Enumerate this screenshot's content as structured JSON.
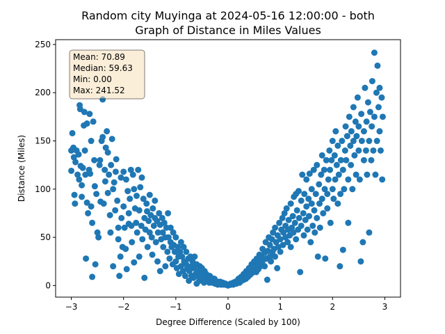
{
  "chart_data": {
    "type": "scatter",
    "title_line1": "Random city Muyinga at 2024-05-16 12:00:00  - both",
    "title_line2": "Graph of Distance in Miles Values",
    "xlabel": "Degree Difference (Scaled by 100)",
    "ylabel": "Distance (Miles)",
    "xlim": [
      -3.3,
      3.3
    ],
    "ylim": [
      -12,
      255
    ],
    "xticks": [
      -3,
      -2,
      -1,
      0,
      1,
      2,
      3
    ],
    "yticks": [
      0,
      50,
      100,
      150,
      200,
      250
    ],
    "point_color": "#1f77b4",
    "stats": {
      "mean": "Mean: 70.89",
      "median": "Median: 59.63",
      "min": "Min: 0.00",
      "max": "Max: 241.52"
    },
    "points": [
      [
        -3.0,
        119
      ],
      [
        -3.0,
        140
      ],
      [
        -2.98,
        158
      ],
      [
        -2.96,
        143
      ],
      [
        -2.95,
        133
      ],
      [
        -2.94,
        94
      ],
      [
        -2.93,
        85
      ],
      [
        -2.92,
        128
      ],
      [
        -2.9,
        140
      ],
      [
        -2.88,
        115
      ],
      [
        -2.86,
        136
      ],
      [
        -2.85,
        110
      ],
      [
        -2.84,
        187
      ],
      [
        -2.83,
        183
      ],
      [
        -2.82,
        124
      ],
      [
        -2.8,
        104
      ],
      [
        -2.8,
        92
      ],
      [
        -2.78,
        122
      ],
      [
        -2.76,
        166
      ],
      [
        -2.75,
        180
      ],
      [
        -2.74,
        140
      ],
      [
        -2.73,
        115
      ],
      [
        -2.72,
        28
      ],
      [
        -2.7,
        86
      ],
      [
        -2.7,
        168
      ],
      [
        -2.68,
        75
      ],
      [
        -2.66,
        120
      ],
      [
        -2.65,
        178
      ],
      [
        -2.64,
        116
      ],
      [
        -2.62,
        150
      ],
      [
        -2.62,
        82
      ],
      [
        -2.6,
        9
      ],
      [
        -2.6,
        65
      ],
      [
        -2.58,
        170
      ],
      [
        -2.56,
        130
      ],
      [
        -2.55,
        103
      ],
      [
        -2.54,
        22
      ],
      [
        -2.52,
        95
      ],
      [
        -2.5,
        55
      ],
      [
        -2.48,
        50
      ],
      [
        -2.46,
        125
      ],
      [
        -2.45,
        130
      ],
      [
        -2.44,
        87
      ],
      [
        -2.42,
        150
      ],
      [
        -2.4,
        154
      ],
      [
        -2.4,
        193
      ],
      [
        -2.38,
        85
      ],
      [
        -2.36,
        120
      ],
      [
        -2.35,
        108
      ],
      [
        -2.34,
        143
      ],
      [
        -2.32,
        160
      ],
      [
        -2.3,
        138
      ],
      [
        -2.3,
        96
      ],
      [
        -2.28,
        115
      ],
      [
        -2.26,
        73
      ],
      [
        -2.25,
        55
      ],
      [
        -2.24,
        125
      ],
      [
        -2.22,
        152
      ],
      [
        -2.2,
        100
      ],
      [
        -2.2,
        20
      ],
      [
        -2.18,
        107
      ],
      [
        -2.16,
        78
      ],
      [
        -2.15,
        118
      ],
      [
        -2.14,
        131
      ],
      [
        -2.12,
        88
      ],
      [
        -2.1,
        60
      ],
      [
        -2.1,
        48
      ],
      [
        -2.08,
        10
      ],
      [
        -2.06,
        30
      ],
      [
        -2.05,
        112
      ],
      [
        -2.04,
        70
      ],
      [
        -2.02,
        40
      ],
      [
        -2.0,
        82
      ],
      [
        -2.0,
        118
      ],
      [
        -1.98,
        60
      ],
      [
        -1.96,
        38
      ],
      [
        -1.95,
        110
      ],
      [
        -1.94,
        17
      ],
      [
        -1.92,
        98
      ],
      [
        -1.9,
        75
      ],
      [
        -1.9,
        64
      ],
      [
        -1.88,
        90
      ],
      [
        -1.86,
        120
      ],
      [
        -1.85,
        62
      ],
      [
        -1.84,
        45
      ],
      [
        -1.82,
        115
      ],
      [
        -1.8,
        100
      ],
      [
        -1.8,
        24
      ],
      [
        -1.78,
        80
      ],
      [
        -1.76,
        65
      ],
      [
        -1.75,
        93
      ],
      [
        -1.74,
        55
      ],
      [
        -1.72,
        120
      ],
      [
        -1.7,
        78
      ],
      [
        -1.7,
        30
      ],
      [
        -1.68,
        102
      ],
      [
        -1.66,
        62
      ],
      [
        -1.65,
        112
      ],
      [
        -1.64,
        48
      ],
      [
        -1.62,
        90
      ],
      [
        -1.6,
        70
      ],
      [
        -1.6,
        8
      ],
      [
        -1.58,
        58
      ],
      [
        -1.56,
        85
      ],
      [
        -1.55,
        77
      ],
      [
        -1.54,
        40
      ],
      [
        -1.52,
        67
      ],
      [
        -1.5,
        94
      ],
      [
        -1.5,
        55
      ],
      [
        -1.48,
        73
      ],
      [
        -1.46,
        50
      ],
      [
        -1.45,
        32
      ],
      [
        -1.44,
        80
      ],
      [
        -1.42,
        62
      ],
      [
        -1.4,
        88
      ],
      [
        -1.4,
        70
      ],
      [
        -1.38,
        45
      ],
      [
        -1.36,
        67
      ],
      [
        -1.35,
        25
      ],
      [
        -1.34,
        55
      ],
      [
        -1.32,
        75
      ],
      [
        -1.3,
        63
      ],
      [
        -1.3,
        15
      ],
      [
        -1.28,
        48
      ],
      [
        -1.26,
        70
      ],
      [
        -1.25,
        55
      ],
      [
        -1.24,
        40
      ],
      [
        -1.22,
        65
      ],
      [
        -1.2,
        20
      ],
      [
        -1.2,
        50
      ],
      [
        -1.18,
        60
      ],
      [
        -1.16,
        35
      ],
      [
        -1.15,
        75
      ],
      [
        -1.14,
        50
      ],
      [
        -1.12,
        28
      ],
      [
        -1.1,
        45
      ],
      [
        -1.1,
        60
      ],
      [
        -1.08,
        40
      ],
      [
        -1.06,
        22
      ],
      [
        -1.05,
        55
      ],
      [
        -1.04,
        42
      ],
      [
        -1.02,
        35
      ],
      [
        -1.0,
        50
      ],
      [
        -1.0,
        25
      ],
      [
        -0.98,
        18
      ],
      [
        -0.96,
        40
      ],
      [
        -0.95,
        30
      ],
      [
        -0.94,
        12
      ],
      [
        -0.92,
        35
      ],
      [
        -0.9,
        45
      ],
      [
        -0.9,
        20
      ],
      [
        -0.88,
        30
      ],
      [
        -0.86,
        15
      ],
      [
        -0.85,
        40
      ],
      [
        -0.84,
        25
      ],
      [
        -0.82,
        10
      ],
      [
        -0.8,
        22
      ],
      [
        -0.8,
        35
      ],
      [
        -0.78,
        18
      ],
      [
        -0.76,
        28
      ],
      [
        -0.75,
        5
      ],
      [
        -0.74,
        15
      ],
      [
        -0.72,
        30
      ],
      [
        -0.7,
        20
      ],
      [
        -0.7,
        10
      ],
      [
        -0.68,
        25
      ],
      [
        -0.66,
        8
      ],
      [
        -0.65,
        18
      ],
      [
        -0.64,
        30
      ],
      [
        -0.62,
        12
      ],
      [
        -0.6,
        2
      ],
      [
        -0.6,
        22
      ],
      [
        -0.58,
        10
      ],
      [
        -0.56,
        15
      ],
      [
        -0.55,
        5
      ],
      [
        -0.54,
        20
      ],
      [
        -0.52,
        12
      ],
      [
        -0.5,
        8
      ],
      [
        -0.5,
        18
      ],
      [
        -0.48,
        10
      ],
      [
        -0.46,
        3
      ],
      [
        -0.45,
        15
      ],
      [
        -0.44,
        8
      ],
      [
        -0.42,
        12
      ],
      [
        -0.4,
        5
      ],
      [
        -0.4,
        10
      ],
      [
        -0.38,
        7
      ],
      [
        -0.36,
        3
      ],
      [
        -0.35,
        10
      ],
      [
        -0.34,
        5
      ],
      [
        -0.32,
        8
      ],
      [
        -0.3,
        3
      ],
      [
        -0.3,
        6
      ],
      [
        -0.28,
        4
      ],
      [
        -0.26,
        7
      ],
      [
        -0.25,
        2
      ],
      [
        -0.24,
        5
      ],
      [
        -0.22,
        3
      ],
      [
        -0.2,
        4
      ],
      [
        -0.2,
        1
      ],
      [
        -0.18,
        3
      ],
      [
        -0.16,
        2
      ],
      [
        -0.15,
        4
      ],
      [
        -0.14,
        1
      ],
      [
        -0.12,
        2
      ],
      [
        -0.1,
        3
      ],
      [
        -0.1,
        1
      ],
      [
        -0.08,
        2
      ],
      [
        -0.06,
        1
      ],
      [
        -0.05,
        2
      ],
      [
        -0.04,
        1
      ],
      [
        -0.02,
        0.5
      ],
      [
        0.0,
        0
      ],
      [
        0.02,
        0.5
      ],
      [
        0.04,
        1
      ],
      [
        0.05,
        2
      ],
      [
        0.06,
        1
      ],
      [
        0.08,
        2
      ],
      [
        0.1,
        3
      ],
      [
        0.1,
        1
      ],
      [
        0.12,
        2
      ],
      [
        0.14,
        4
      ],
      [
        0.15,
        3
      ],
      [
        0.16,
        2
      ],
      [
        0.18,
        5
      ],
      [
        0.2,
        4
      ],
      [
        0.2,
        7
      ],
      [
        0.22,
        3
      ],
      [
        0.24,
        6
      ],
      [
        0.25,
        9
      ],
      [
        0.26,
        5
      ],
      [
        0.28,
        8
      ],
      [
        0.3,
        6
      ],
      [
        0.3,
        12
      ],
      [
        0.32,
        10
      ],
      [
        0.34,
        7
      ],
      [
        0.35,
        15
      ],
      [
        0.36,
        12
      ],
      [
        0.38,
        9
      ],
      [
        0.4,
        14
      ],
      [
        0.4,
        18
      ],
      [
        0.42,
        11
      ],
      [
        0.44,
        16
      ],
      [
        0.45,
        22
      ],
      [
        0.46,
        13
      ],
      [
        0.48,
        19
      ],
      [
        0.5,
        15
      ],
      [
        0.5,
        25
      ],
      [
        0.52,
        20
      ],
      [
        0.54,
        14
      ],
      [
        0.55,
        28
      ],
      [
        0.56,
        22
      ],
      [
        0.58,
        17
      ],
      [
        0.6,
        26
      ],
      [
        0.6,
        32
      ],
      [
        0.62,
        20
      ],
      [
        0.64,
        30
      ],
      [
        0.65,
        24
      ],
      [
        0.66,
        38
      ],
      [
        0.68,
        27
      ],
      [
        0.7,
        20
      ],
      [
        0.7,
        34
      ],
      [
        0.72,
        45
      ],
      [
        0.74,
        28
      ],
      [
        0.75,
        6
      ],
      [
        0.76,
        36
      ],
      [
        0.78,
        50
      ],
      [
        0.8,
        30
      ],
      [
        0.8,
        42
      ],
      [
        0.82,
        25
      ],
      [
        0.84,
        48
      ],
      [
        0.85,
        35
      ],
      [
        0.86,
        55
      ],
      [
        0.88,
        38
      ],
      [
        0.9,
        30
      ],
      [
        0.9,
        60
      ],
      [
        0.92,
        45
      ],
      [
        0.94,
        18
      ],
      [
        0.95,
        52
      ],
      [
        0.96,
        40
      ],
      [
        0.98,
        65
      ],
      [
        1.0,
        48
      ],
      [
        1.0,
        35
      ],
      [
        1.02,
        58
      ],
      [
        1.04,
        70
      ],
      [
        1.05,
        42
      ],
      [
        1.06,
        55
      ],
      [
        1.08,
        75
      ],
      [
        1.1,
        50
      ],
      [
        1.1,
        62
      ],
      [
        1.12,
        80
      ],
      [
        1.14,
        45
      ],
      [
        1.15,
        58
      ],
      [
        1.16,
        68
      ],
      [
        1.18,
        52
      ],
      [
        1.2,
        85
      ],
      [
        1.2,
        40
      ],
      [
        1.22,
        60
      ],
      [
        1.24,
        72
      ],
      [
        1.25,
        55
      ],
      [
        1.26,
        92
      ],
      [
        1.28,
        65
      ],
      [
        1.3,
        48
      ],
      [
        1.3,
        95
      ],
      [
        1.32,
        78
      ],
      [
        1.34,
        58
      ],
      [
        1.35,
        98
      ],
      [
        1.36,
        70
      ],
      [
        1.38,
        14
      ],
      [
        1.4,
        62
      ],
      [
        1.4,
        88
      ],
      [
        1.42,
        115
      ],
      [
        1.44,
        75
      ],
      [
        1.45,
        52
      ],
      [
        1.46,
        95
      ],
      [
        1.48,
        68
      ],
      [
        1.5,
        82
      ],
      [
        1.5,
        110
      ],
      [
        1.52,
        58
      ],
      [
        1.54,
        90
      ],
      [
        1.55,
        72
      ],
      [
        1.56,
        116
      ],
      [
        1.58,
        45
      ],
      [
        1.6,
        85
      ],
      [
        1.6,
        100
      ],
      [
        1.62,
        62
      ],
      [
        1.64,
        120
      ],
      [
        1.65,
        78
      ],
      [
        1.66,
        55
      ],
      [
        1.68,
        95
      ],
      [
        1.7,
        125
      ],
      [
        1.7,
        70
      ],
      [
        1.72,
        30
      ],
      [
        1.74,
        105
      ],
      [
        1.75,
        85
      ],
      [
        1.76,
        60
      ],
      [
        1.78,
        115
      ],
      [
        1.8,
        90
      ],
      [
        1.8,
        135
      ],
      [
        1.82,
        75
      ],
      [
        1.84,
        120
      ],
      [
        1.85,
        100
      ],
      [
        1.86,
        28
      ],
      [
        1.88,
        130
      ],
      [
        1.9,
        95
      ],
      [
        1.9,
        80
      ],
      [
        1.92,
        110
      ],
      [
        1.94,
        140
      ],
      [
        1.95,
        120
      ],
      [
        1.96,
        65
      ],
      [
        1.98,
        130
      ],
      [
        2.0,
        100
      ],
      [
        2.0,
        150
      ],
      [
        2.02,
        90
      ],
      [
        2.04,
        135
      ],
      [
        2.05,
        110
      ],
      [
        2.06,
        160
      ],
      [
        2.08,
        125
      ],
      [
        2.1,
        85
      ],
      [
        2.1,
        145
      ],
      [
        2.12,
        115
      ],
      [
        2.14,
        20
      ],
      [
        2.15,
        95
      ],
      [
        2.16,
        130
      ],
      [
        2.18,
        150
      ],
      [
        2.2,
        120
      ],
      [
        2.2,
        37
      ],
      [
        2.22,
        100
      ],
      [
        2.24,
        140
      ],
      [
        2.25,
        165
      ],
      [
        2.26,
        130
      ],
      [
        2.28,
        155
      ],
      [
        2.3,
        110
      ],
      [
        2.3,
        65
      ],
      [
        2.32,
        175
      ],
      [
        2.34,
        145
      ],
      [
        2.35,
        125
      ],
      [
        2.36,
        160
      ],
      [
        2.38,
        100
      ],
      [
        2.4,
        150
      ],
      [
        2.4,
        185
      ],
      [
        2.42,
        135
      ],
      [
        2.44,
        170
      ],
      [
        2.45,
        115
      ],
      [
        2.46,
        155
      ],
      [
        2.48,
        195
      ],
      [
        2.5,
        140
      ],
      [
        2.5,
        165
      ],
      [
        2.52,
        110
      ],
      [
        2.54,
        25
      ],
      [
        2.55,
        178
      ],
      [
        2.56,
        150
      ],
      [
        2.58,
        45
      ],
      [
        2.6,
        130
      ],
      [
        2.6,
        160
      ],
      [
        2.62,
        205
      ],
      [
        2.64,
        140
      ],
      [
        2.65,
        170
      ],
      [
        2.66,
        115
      ],
      [
        2.68,
        190
      ],
      [
        2.7,
        150
      ],
      [
        2.7,
        55
      ],
      [
        2.72,
        180
      ],
      [
        2.74,
        130
      ],
      [
        2.75,
        165
      ],
      [
        2.76,
        212
      ],
      [
        2.78,
        140
      ],
      [
        2.8,
        241.5
      ],
      [
        2.8,
        175
      ],
      [
        2.82,
        115
      ],
      [
        2.84,
        200
      ],
      [
        2.85,
        150
      ],
      [
        2.86,
        228
      ],
      [
        2.88,
        185
      ],
      [
        2.9,
        160
      ],
      [
        2.9,
        205
      ],
      [
        2.92,
        140
      ],
      [
        2.94,
        195
      ],
      [
        2.95,
        110
      ],
      [
        2.96,
        175
      ]
    ]
  }
}
